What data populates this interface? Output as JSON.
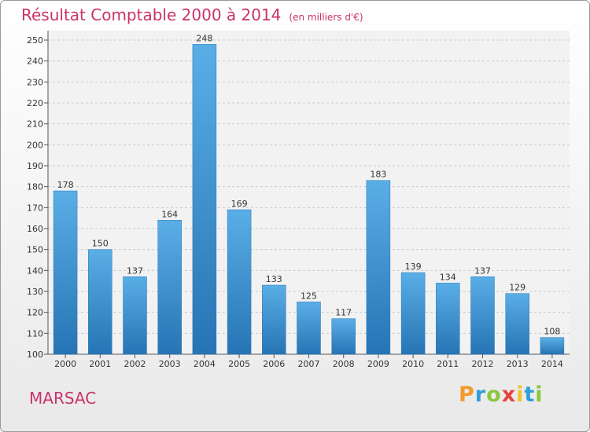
{
  "title": "Résultat Comptable 2000 à 2014",
  "subtitle": "(en milliers d'€)",
  "place": "MARSAC",
  "logo": {
    "letters": [
      "P",
      "r",
      "o",
      "x",
      "i",
      "t",
      "i"
    ],
    "colors": [
      "#f39a2b",
      "#2f9fd6",
      "#8cc63f",
      "#e8423e",
      "#f4c22b",
      "#2f9fd6",
      "#8cc63f"
    ]
  },
  "colors": {
    "bar_top": "#5aaee6",
    "bar_bottom": "#2674b4",
    "accent": "#c8336b"
  },
  "chart_data": {
    "type": "bar",
    "categories": [
      "2000",
      "2001",
      "2002",
      "2003",
      "2004",
      "2005",
      "2006",
      "2007",
      "2008",
      "2009",
      "2010",
      "2011",
      "2012",
      "2013",
      "2014"
    ],
    "values": [
      178,
      150,
      137,
      164,
      248,
      169,
      133,
      125,
      117,
      183,
      139,
      134,
      137,
      129,
      108
    ],
    "ylim": [
      100,
      250
    ],
    "yticks": [
      100,
      110,
      120,
      130,
      140,
      150,
      160,
      170,
      180,
      190,
      200,
      210,
      220,
      230,
      240,
      250
    ],
    "grid": true,
    "xlabel": "",
    "ylabel": ""
  }
}
